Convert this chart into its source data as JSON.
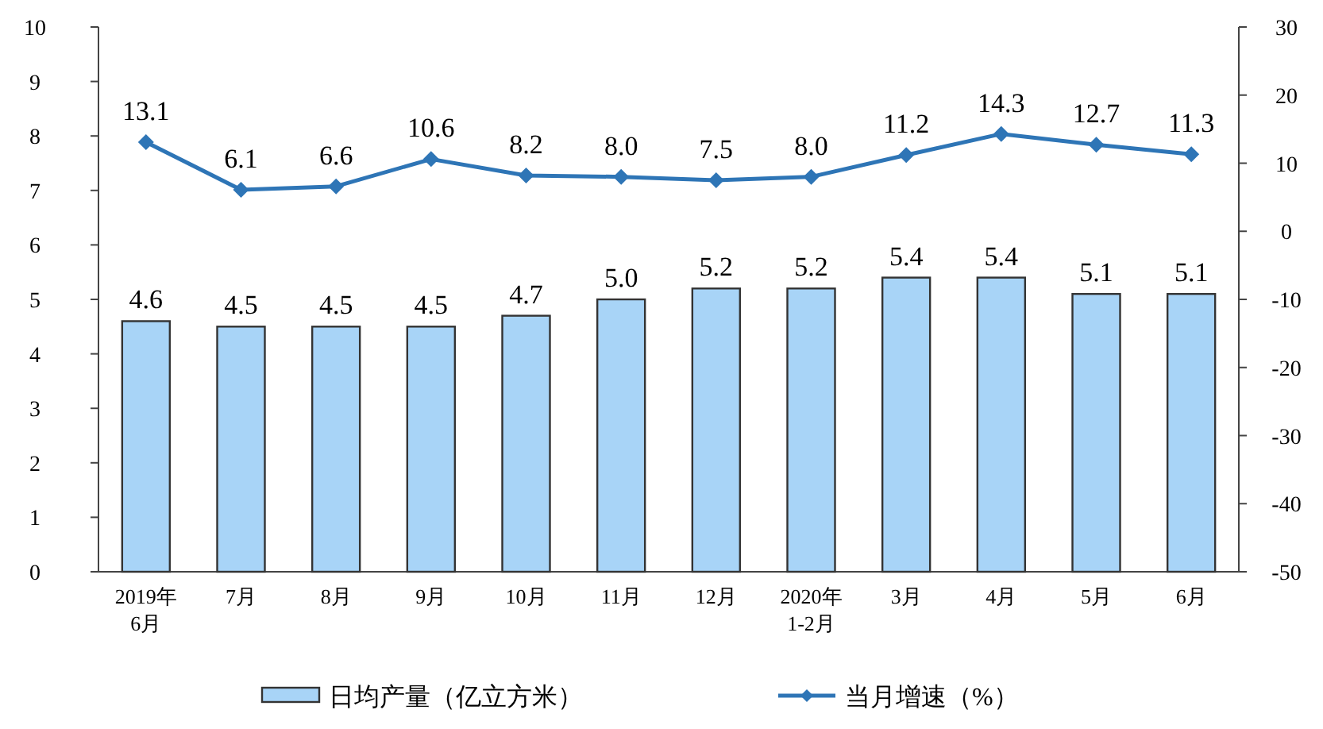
{
  "chart_data": {
    "type": "bar",
    "categories": [
      "2019年\n6月",
      "7月",
      "8月",
      "9月",
      "10月",
      "11月",
      "12月",
      "2020年\n1-2月",
      "3月",
      "4月",
      "5月",
      "6月"
    ],
    "series": [
      {
        "name": "日均产量（亿立方米）",
        "color": "#a8d4f7",
        "values": [
          4.6,
          4.5,
          4.5,
          4.5,
          4.7,
          5.0,
          5.2,
          5.2,
          5.4,
          5.4,
          5.1,
          5.1
        ],
        "value_labels": [
          "4.6",
          "4.5",
          "4.5",
          "4.5",
          "4.7",
          "5.0",
          "5.2",
          "5.2",
          "5.4",
          "5.4",
          "5.1",
          "5.1"
        ]
      },
      {
        "name": "当月增速（%）",
        "type": "line",
        "axis": "y2",
        "color": "#2e75b6",
        "marker": "diamond",
        "values": [
          13.1,
          6.1,
          6.6,
          10.6,
          8.2,
          8.0,
          7.5,
          8.0,
          11.2,
          14.3,
          12.7,
          11.3
        ],
        "value_labels": [
          "13.1",
          "6.1",
          "6.6",
          "10.6",
          "8.2",
          "8.0",
          "7.5",
          "8.0",
          "11.2",
          "14.3",
          "12.7",
          "11.3"
        ]
      }
    ],
    "ylim": [
      0,
      10
    ],
    "yticks": [
      0,
      1,
      2,
      3,
      4,
      5,
      6,
      7,
      8,
      9,
      10
    ],
    "y2lim": [
      -50,
      30
    ],
    "y2ticks": [
      -50,
      -40,
      -30,
      -20,
      -10,
      0,
      10,
      20,
      30
    ],
    "legend": "bottom",
    "grid": false
  }
}
